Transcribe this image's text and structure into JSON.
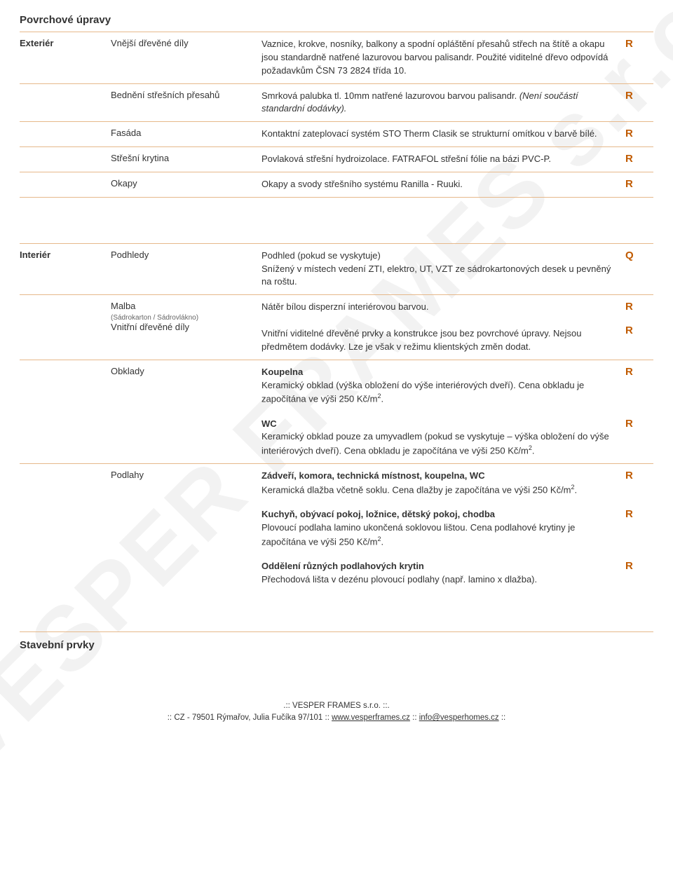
{
  "watermark": "VESPER FRAMES s.r.o.",
  "sections": {
    "povrchove": {
      "title": "Povrchové úpravy",
      "groups": [
        {
          "l1": "Exteriér",
          "rows": [
            {
              "l2": "Vnější dřevěné díly",
              "desc": "Vaznice, krokve, nosníky, balkony a spodní opláštění přesahů střech na štítě a okapu jsou standardně natřené lazurovou barvou palisandr. Použité viditelné dřevo odpovídá požadavkům ČSN 73 2824 třída 10.",
              "code": "R"
            },
            {
              "l2": "Bednění střešních přesahů",
              "desc_html": "Smrková palubka tl. 10mm natřené lazurovou barvou palisandr. <span class='italic'>(Není součástí standardní dodávky).</span>",
              "code": "R"
            },
            {
              "l2": "Fasáda",
              "desc": "Kontaktní zateplovací systém STO Therm Clasik se strukturní omítkou v barvě bílé.",
              "code": "R"
            },
            {
              "l2": "Střešní krytina",
              "desc": "Povlaková střešní hydroizolace. FATRAFOL střešní fólie na bázi PVC-P.",
              "code": "R"
            },
            {
              "l2": "Okapy",
              "desc": "Okapy a svody střešního systému Ranilla - Ruuki.",
              "code": "R"
            }
          ]
        },
        {
          "l1": "Interiér",
          "rows": [
            {
              "l2": "Podhledy",
              "desc_html": "Podhled (pokud se vyskytuje)<br>Snížený v místech vedení ZTI, elektro, UT, VZT ze sádrokartonových desek u pevněný na roštu.",
              "code": "Q"
            },
            {
              "l2_html": "Malba<br><span class='sublabel'>(Sádrokarton / Sádrovlákno)</span><br>Vnitřní dřevěné díly",
              "desc_html": "Nátěr bílou disperzní interiérovou barvou.<br><br>Vnitřní viditelné dřevěné prvky a konstrukce jsou bez povrchové úpravy. Nejsou předmětem dodávky. Lze je však v režimu klientských změn dodat.",
              "code_html": "R<br><br>R"
            },
            {
              "l2": "Obklady",
              "desc_html": "<span class='strong'>Koupelna</span><br>Keramický obklad (výška obložení do výše interiérových dveří). Cena obkladu je započítána ve výši 250 Kč/m<span class='sup'>2</span>.",
              "code": "R"
            },
            {
              "l2": "",
              "noborder": true,
              "desc_html": "<span class='strong'>WC</span><br>Keramický obklad pouze za umyvadlem (pokud se vyskytuje – výška obložení do výše interiérových dveří). Cena obkladu je započítána ve výši 250 Kč/m<span class='sup'>2</span>.",
              "code": "R"
            },
            {
              "l2": "Podlahy",
              "desc_html": "<span class='strong'>Zádveří, komora, technická místnost, koupelna, WC</span><br>Keramická dlažba včetně soklu. Cena dlažby je započítána ve výši 250 Kč/m<span class='sup'>2</span>.",
              "code": "R"
            },
            {
              "l2": "",
              "noborder": true,
              "desc_html": "<span class='strong'>Kuchyň, obývací pokoj, ložnice, dětský pokoj, chodba</span><br>Plovoucí podlaha lamino ukončená soklovou lištou. Cena podlahové krytiny je započítána ve výši 250 Kč/m<span class='sup'>2</span>.",
              "code": "R"
            },
            {
              "l2": "",
              "noborder": true,
              "desc_html": "<span class='strong'>Oddělení různých podlahových krytin</span><br>Přechodová lišta v dezénu plovoucí podlahy (např. lamino x dlažba).",
              "code": "R"
            }
          ]
        }
      ]
    },
    "stavebni": {
      "title": "Stavební prvky"
    }
  },
  "footer": {
    "line1": ".::  VESPER FRAMES s.r.o.  ::.",
    "line2_pre": ":: CZ - 79501 Rýmařov, Julia Fučíka 97/101 :: ",
    "link1": "www.vesperframes.cz",
    "mid": " :: ",
    "link2": "info@vesperhomes.cz",
    "line2_post": " ::"
  }
}
